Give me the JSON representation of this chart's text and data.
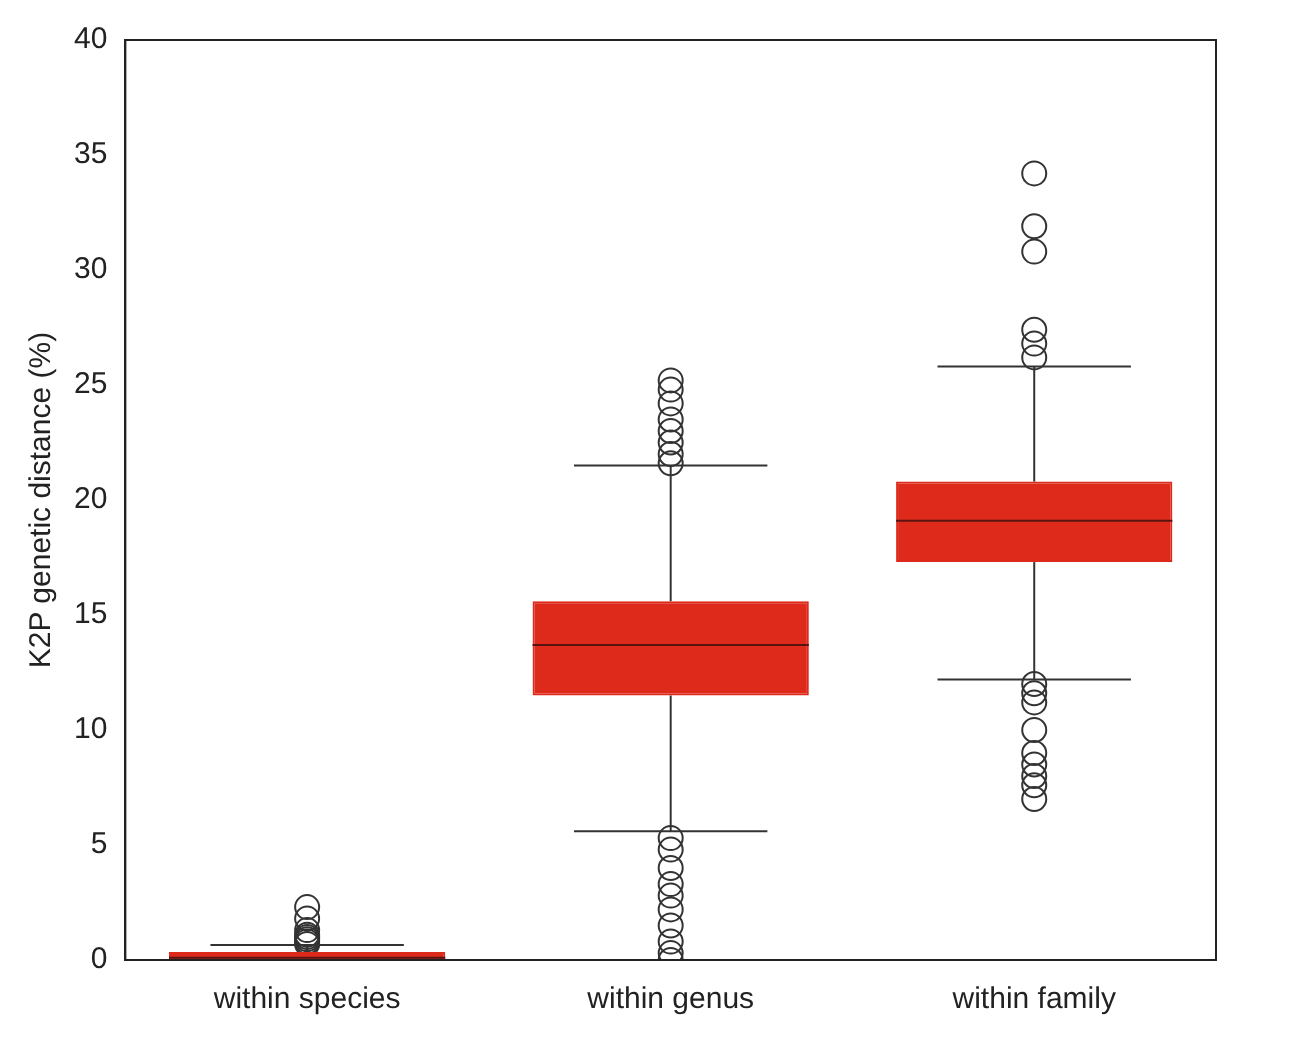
{
  "chart_data": {
    "type": "box",
    "ylabel": "K2P genetic distance (%)",
    "categories": [
      "within species",
      "within genus",
      "within family"
    ],
    "color": "#dd2a1b",
    "boxes": [
      {
        "low": 0,
        "q1": 0,
        "median": 0.1,
        "q3": 0.35,
        "high": 0.65,
        "outliers": [
          0.7,
          0.8,
          0.9,
          1.0,
          1.1,
          1.3,
          1.8,
          2.3
        ]
      },
      {
        "low": 5.6,
        "q1": 11.5,
        "median": 13.7,
        "q3": 15.6,
        "high": 21.5,
        "outliers": [
          0,
          0.3,
          0.8,
          1.5,
          2.2,
          2.8,
          3.3,
          4.0,
          4.8,
          5.3,
          21.6,
          22.0,
          22.5,
          23.0,
          23.5,
          24.2,
          24.8,
          25.2
        ]
      },
      {
        "low": 12.2,
        "q1": 17.3,
        "median": 19.1,
        "q3": 20.8,
        "high": 25.8,
        "outliers": [
          7.0,
          7.6,
          8.0,
          8.5,
          9.0,
          10.0,
          11.2,
          11.6,
          12.0,
          26.2,
          26.8,
          27.4,
          30.8,
          31.9,
          34.2
        ]
      }
    ],
    "ylim": [
      0,
      40
    ],
    "yticks": [
      0,
      5,
      10,
      15,
      20,
      25,
      30,
      35,
      40
    ],
    "grid": false,
    "legend": false
  }
}
